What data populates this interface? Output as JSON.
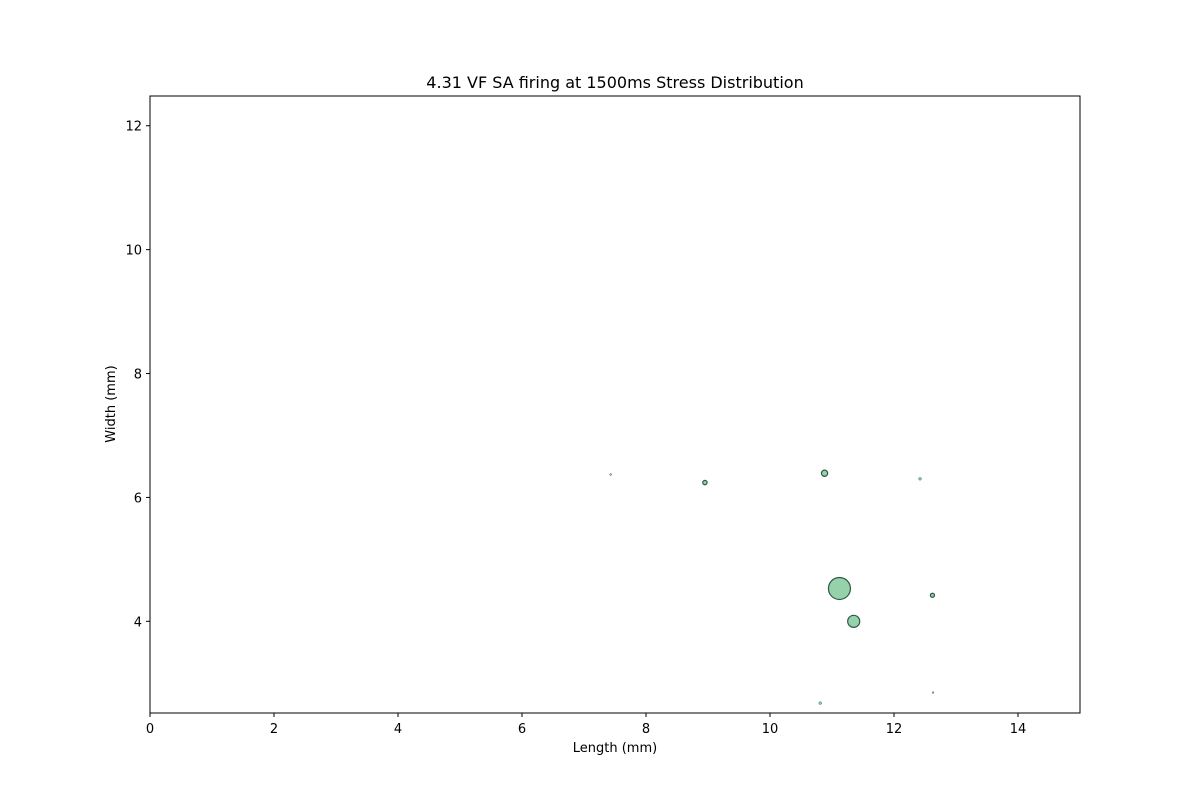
{
  "chart_data": {
    "type": "scatter",
    "title": "4.31 VF SA firing at 1500ms Stress Distribution",
    "xlabel": "Length (mm)",
    "ylabel": "Width (mm)",
    "xlim": [
      0,
      15
    ],
    "ylim": [
      2.52,
      12.48
    ],
    "xticks": [
      0,
      2,
      4,
      6,
      8,
      10,
      12,
      14
    ],
    "yticks": [
      4,
      6,
      8,
      10,
      12
    ],
    "grid": false,
    "legend": "none",
    "marker_fill": "#8fd0a6",
    "marker_edge": "#2e5a44",
    "points": [
      {
        "x": 11.12,
        "y": 4.53,
        "size": 100
      },
      {
        "x": 11.35,
        "y": 4.0,
        "size": 30
      },
      {
        "x": 10.88,
        "y": 6.39,
        "size": 8
      },
      {
        "x": 8.95,
        "y": 6.24,
        "size": 4
      },
      {
        "x": 12.62,
        "y": 4.42,
        "size": 3.5
      },
      {
        "x": 12.42,
        "y": 6.3,
        "size": 1.5
      },
      {
        "x": 10.81,
        "y": 2.68,
        "size": 1.5
      },
      {
        "x": 7.43,
        "y": 6.37,
        "size": 0.7
      },
      {
        "x": 12.63,
        "y": 2.85,
        "size": 0.6
      }
    ]
  }
}
